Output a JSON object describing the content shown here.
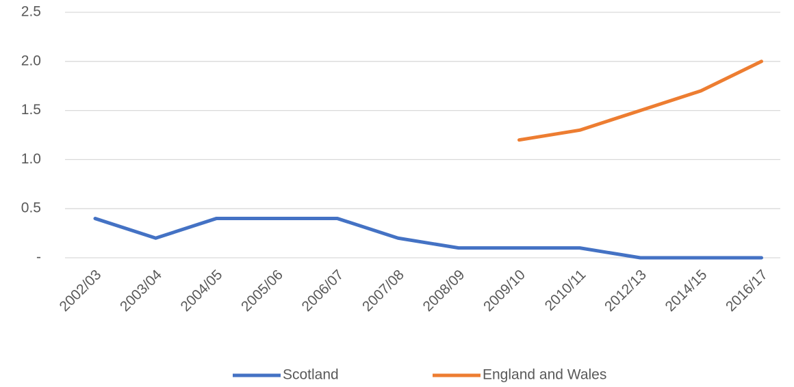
{
  "chart_data": {
    "type": "line",
    "categories": [
      "2002/03",
      "2003/04",
      "2004/05",
      "2005/06",
      "2006/07",
      "2007/08",
      "2008/09",
      "2009/10",
      "2010/11",
      "2012/13",
      "2014/15",
      "2016/17"
    ],
    "series": [
      {
        "name": "Scotland",
        "color": "#4472c4",
        "values": [
          0.4,
          0.2,
          0.4,
          0.4,
          0.4,
          0.2,
          0.1,
          0.1,
          0.1,
          0,
          0,
          0
        ]
      },
      {
        "name": "England and Wales",
        "color": "#ed7d31",
        "values": [
          null,
          null,
          null,
          null,
          null,
          null,
          null,
          1.2,
          1.3,
          1.5,
          1.7,
          2.0
        ]
      }
    ],
    "ylim": [
      0,
      2.5
    ],
    "yticks": [
      {
        "value": 0,
        "label": "-"
      },
      0.5,
      {
        "value": 1,
        "label": "1.0"
      },
      1.5,
      {
        "value": 2,
        "label": "2.0"
      },
      2.5
    ],
    "grid": true,
    "legend": "bottom"
  }
}
